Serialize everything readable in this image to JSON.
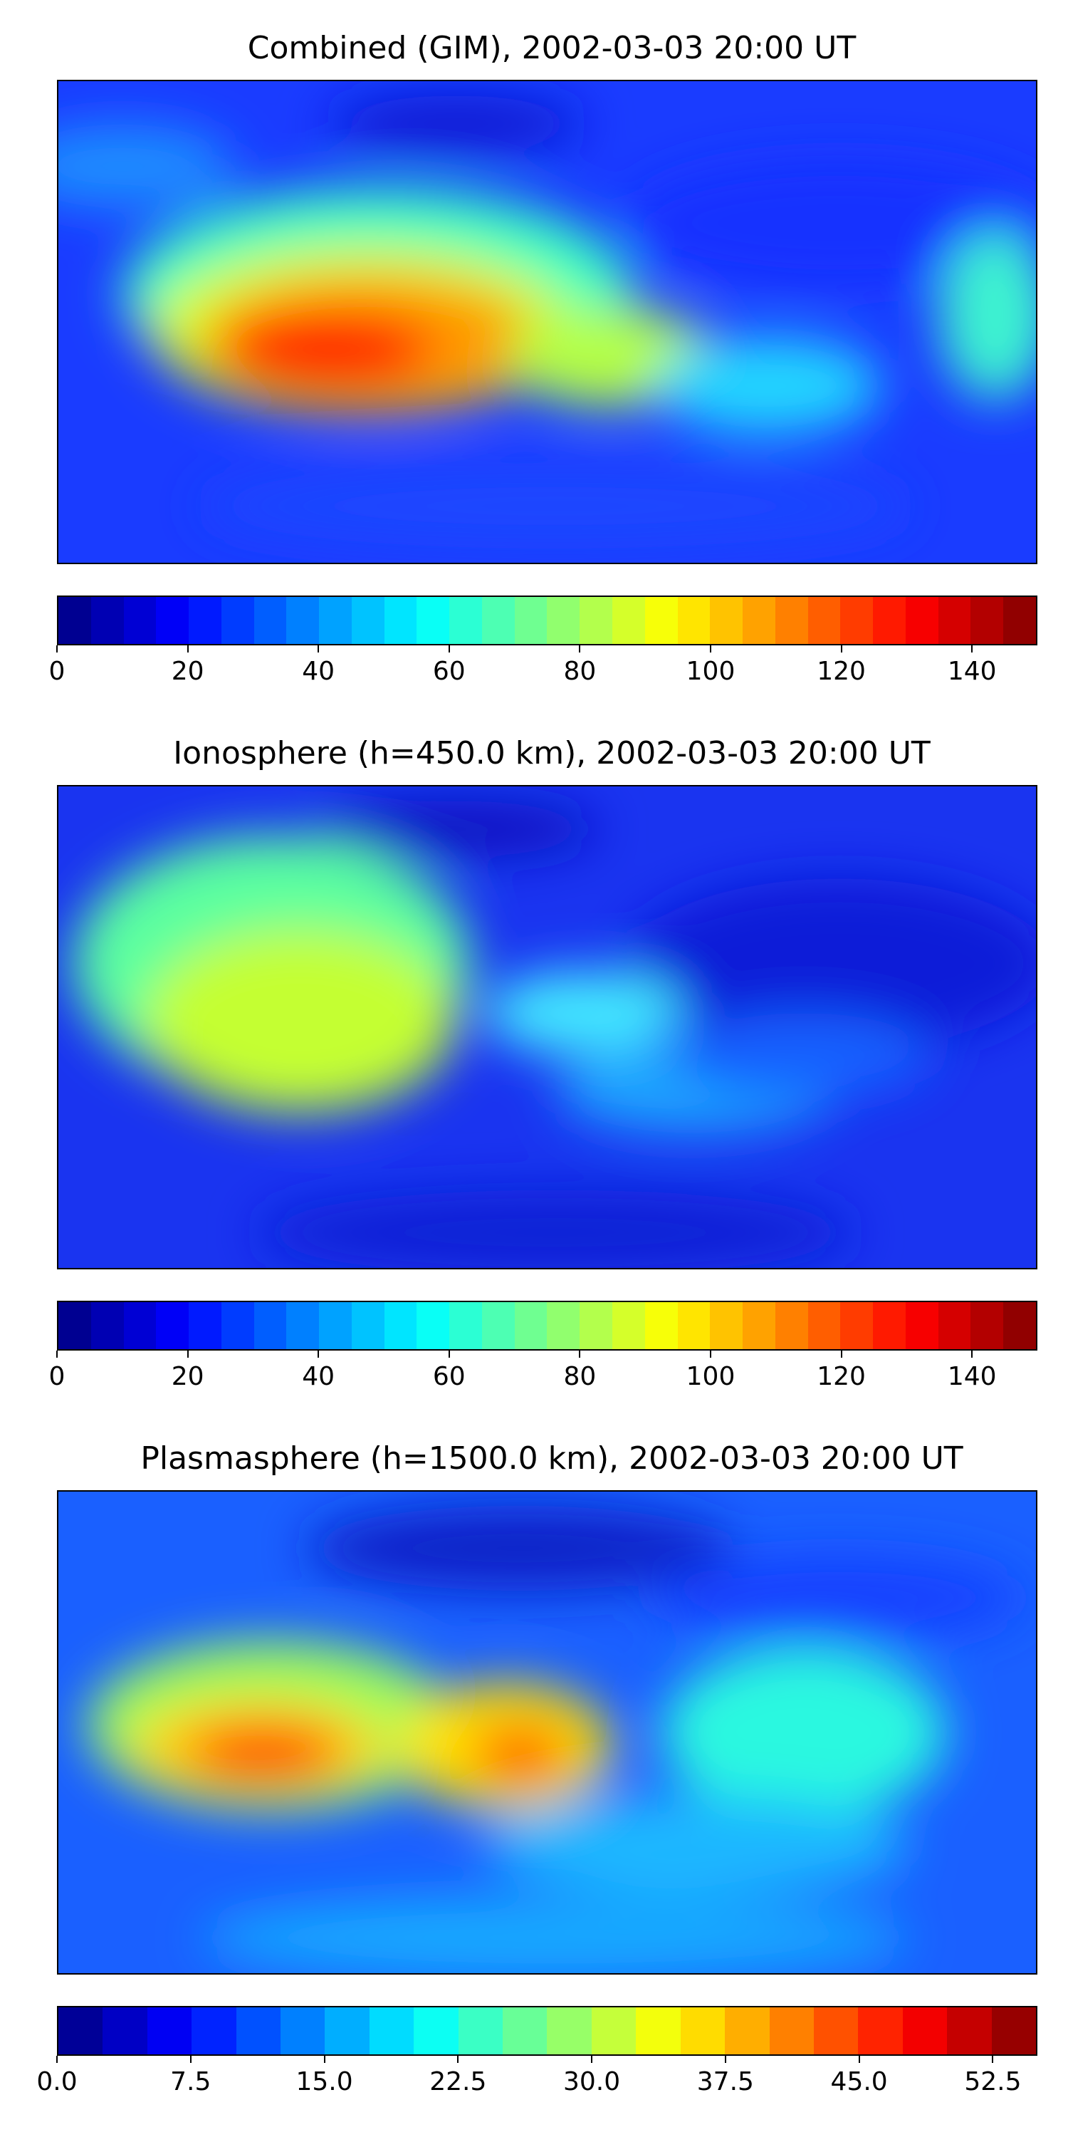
{
  "panels": [
    {
      "title": "Combined (GIM), 2002-03-03 20:00 UT",
      "colorbar": {
        "min": 0,
        "max": 150,
        "levels": 30,
        "ticks": [
          "0",
          "20",
          "40",
          "60",
          "80",
          "100",
          "120",
          "140"
        ]
      }
    },
    {
      "title": "Ionosphere  (h=450.0 km), 2002-03-03 20:00 UT",
      "colorbar": {
        "min": 0,
        "max": 150,
        "levels": 30,
        "ticks": [
          "0",
          "20",
          "40",
          "60",
          "80",
          "100",
          "120",
          "140"
        ]
      }
    },
    {
      "title": "Plasmasphere (h=1500.0 km), 2002-03-03 20:00 UT",
      "colorbar": {
        "min": 0,
        "max": 55,
        "levels": 22,
        "ticks": [
          "0.0",
          "7.5",
          "15.0",
          "22.5",
          "30.0",
          "37.5",
          "45.0",
          "52.5"
        ]
      }
    }
  ],
  "colormap": "jet"
}
